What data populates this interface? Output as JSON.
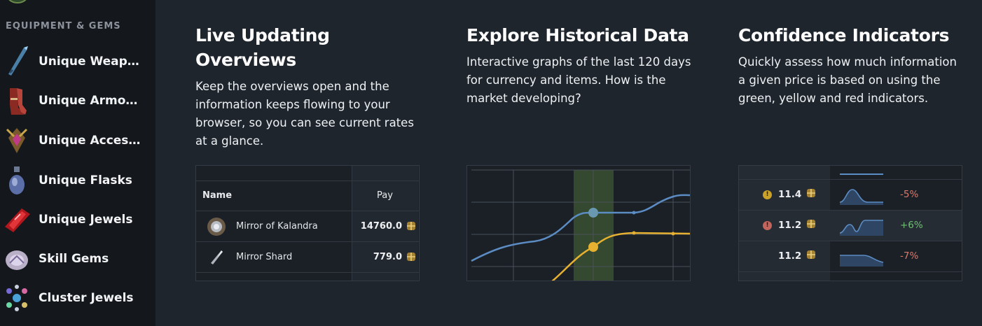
{
  "sidebar": {
    "section_label": "EQUIPMENT & GEMS",
    "items": [
      {
        "label": "Unique Weapo...",
        "icon": "weapon-icon"
      },
      {
        "label": "Unique Armours",
        "icon": "armour-icon"
      },
      {
        "label": "Unique Access...",
        "icon": "accessory-icon"
      },
      {
        "label": "Unique Flasks",
        "icon": "flask-icon"
      },
      {
        "label": "Unique Jewels",
        "icon": "jewel-icon"
      },
      {
        "label": "Skill Gems",
        "icon": "gem-icon"
      },
      {
        "label": "Cluster Jewels",
        "icon": "cluster-jewel-icon"
      }
    ]
  },
  "features": {
    "live": {
      "title": "Live Updating Overviews",
      "text": "Keep the overviews open and the information keeps flowing to your browser, so you can see current rates at a glance."
    },
    "history": {
      "title": "Explore Historical Data",
      "text": "Interactive graphs of the last 120 days for currency and items. How is the market developing?"
    },
    "confidence": {
      "title": "Confidence Indicators",
      "text": "Quickly assess how much information a given price is based on using the green, yellow and red indicators."
    }
  },
  "overview_table": {
    "headers": {
      "name": "Name",
      "pay": "Pay"
    },
    "rows": [
      {
        "name": "Mirror of Kalandra",
        "pay": "14760.0"
      },
      {
        "name": "Mirror Shard",
        "pay": "779.0"
      }
    ]
  },
  "confidence_table": {
    "rows": [
      {
        "value": "11.4",
        "indicator": "yellow",
        "change": "-5%",
        "trend": "down"
      },
      {
        "value": "11.2",
        "indicator": "red",
        "change": "+6%",
        "trend": "up"
      },
      {
        "value": "11.2",
        "indicator": "none",
        "change": "-7%",
        "trend": "down"
      }
    ]
  },
  "colors": {
    "sidebar_bg": "#14171c",
    "page_bg": "#1f252d",
    "blue_line": "#5b8cc4",
    "yellow_line": "#e6b030",
    "positive": "#6fbf73",
    "negative": "#d97a6c",
    "yellow_indicator": "#c9a227",
    "red_indicator": "#c2655c"
  }
}
